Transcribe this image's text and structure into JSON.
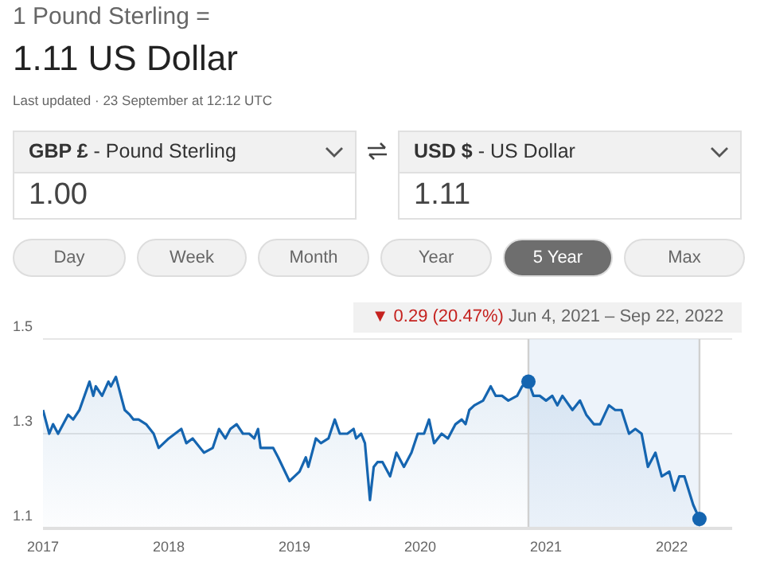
{
  "chart_data": {
    "type": "area",
    "title": "1 Pound Sterling =",
    "subtitle": "1.11 US Dollar",
    "annotations": [
      "Last updated · 23 September at 12:12 UTC",
      "GBP £",
      "- Pound Sterling",
      "1.00",
      "USD $",
      "- US Dollar",
      "1.11",
      "Day",
      "Week",
      "Month",
      "Year",
      "5 Year",
      "Max",
      "▼ 0.29 (20.47%)",
      "Jun 4, 2021 – Sep 22, 2022"
    ],
    "series": [
      {
        "color": "#1565b0",
        "marker": "none",
        "x": [
          2017.0,
          2017.05,
          2017.08,
          2017.12,
          2017.2,
          2017.24,
          2017.29,
          2017.37,
          2017.4,
          2017.42,
          2017.47,
          2017.52,
          2017.54,
          2017.58,
          2017.65,
          2017.69,
          2017.72,
          2017.76,
          2017.82,
          2017.88,
          2017.92,
          2018.0,
          2018.05,
          2018.1,
          2018.14,
          2018.19,
          2018.28,
          2018.35,
          2018.4,
          2018.45,
          2018.49,
          2018.54,
          2018.59,
          2018.64,
          2018.68,
          2018.71,
          2018.73,
          2018.79,
          2018.83,
          2018.87,
          2018.96,
          2019.0,
          2019.04,
          2019.09,
          2019.11,
          2019.17,
          2019.21,
          2019.27,
          2019.32,
          2019.36,
          2019.42,
          2019.47,
          2019.49,
          2019.53,
          2019.56,
          2019.6,
          2019.63,
          2019.66,
          2019.7,
          2019.76,
          2019.81,
          2019.87,
          2019.93,
          2019.98,
          2020.03,
          2020.07,
          2020.11,
          2020.17,
          2020.22,
          2020.28,
          2020.33,
          2020.36,
          2020.39,
          2020.43,
          2020.5,
          2020.56,
          2020.6,
          2020.65,
          2020.7,
          2020.77,
          2020.81,
          2020.86,
          2020.9,
          2020.95,
          2021.0,
          2021.05,
          2021.09,
          2021.13,
          2021.21,
          2021.27,
          2021.32,
          2021.38,
          2021.43,
          2021.5,
          2021.55,
          2021.6,
          2021.66,
          2021.71,
          2021.76,
          2021.81,
          2021.87,
          2021.92,
          2021.98,
          2022.02,
          2022.06,
          2022.1,
          2022.17,
          2022.22
        ],
        "values": [
          1.35,
          1.3,
          1.32,
          1.3,
          1.34,
          1.33,
          1.35,
          1.41,
          1.38,
          1.4,
          1.38,
          1.41,
          1.4,
          1.42,
          1.35,
          1.34,
          1.33,
          1.33,
          1.32,
          1.3,
          1.27,
          1.29,
          1.3,
          1.31,
          1.28,
          1.29,
          1.26,
          1.27,
          1.31,
          1.29,
          1.31,
          1.32,
          1.3,
          1.3,
          1.29,
          1.31,
          1.27,
          1.27,
          1.27,
          1.25,
          1.2,
          1.21,
          1.22,
          1.25,
          1.23,
          1.29,
          1.28,
          1.29,
          1.33,
          1.3,
          1.3,
          1.31,
          1.29,
          1.3,
          1.28,
          1.16,
          1.23,
          1.24,
          1.24,
          1.21,
          1.26,
          1.23,
          1.26,
          1.3,
          1.3,
          1.33,
          1.28,
          1.3,
          1.29,
          1.32,
          1.33,
          1.32,
          1.35,
          1.36,
          1.37,
          1.4,
          1.38,
          1.38,
          1.37,
          1.38,
          1.4,
          1.41,
          1.38,
          1.38,
          1.37,
          1.38,
          1.36,
          1.38,
          1.35,
          1.37,
          1.34,
          1.32,
          1.32,
          1.36,
          1.35,
          1.35,
          1.3,
          1.31,
          1.3,
          1.23,
          1.26,
          1.21,
          1.22,
          1.18,
          1.21,
          1.21,
          1.15,
          1.12
        ]
      },
      {
        "type": "scatter",
        "color": "#1565b0",
        "marker": "circle",
        "x": [
          2020.86,
          2022.22
        ],
        "values": [
          1.41,
          1.12
        ]
      }
    ],
    "xlim": [
      2017,
      2022.48
    ],
    "xticks": [
      2017,
      2018,
      2019,
      2020,
      2021,
      2022
    ],
    "ylim": [
      1.1,
      1.5
    ],
    "yticks": [
      1.1,
      1.3,
      1.5
    ],
    "grid": "y",
    "legend": false,
    "bands": [
      {
        "axis": "x",
        "from": 2020.86,
        "to": 2022.22,
        "color": "#dbe8f5"
      }
    ],
    "ref_lines": [
      {
        "axis": "x",
        "value": 2020.86,
        "color": "#d0d0d0"
      },
      {
        "axis": "x",
        "value": 2022.22,
        "color": "#d0d0d0"
      }
    ]
  }
}
